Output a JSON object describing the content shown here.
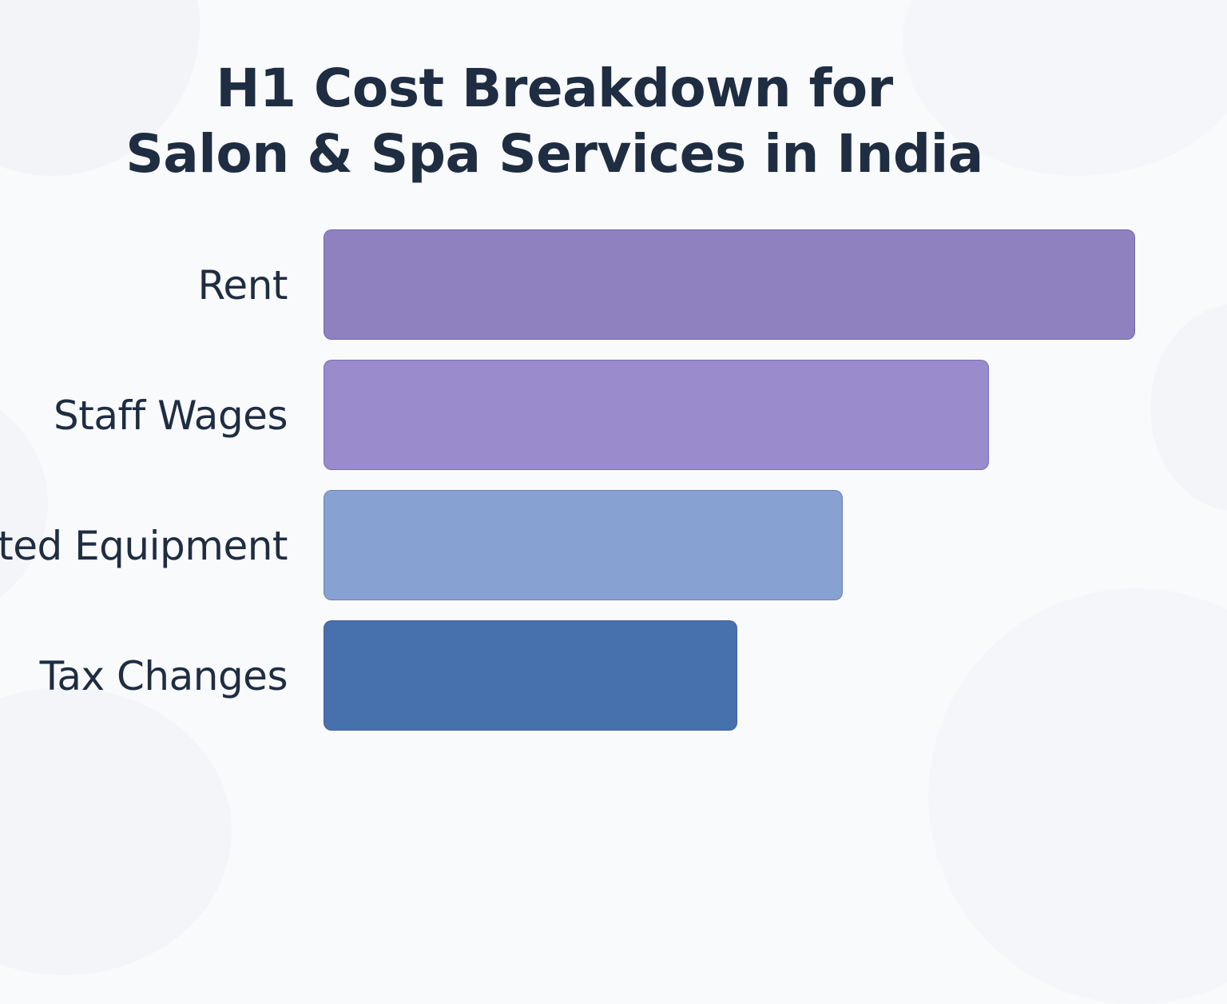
{
  "title": {
    "line1": "H1 Cost Breakdown for",
    "line2": "Salon & Spa Services in India"
  },
  "bars": [
    {
      "label": "Rent",
      "color": "#8f80c0"
    },
    {
      "label": "Staff Wages",
      "color": "#998bcc"
    },
    {
      "label": "Imported Equipment",
      "color": "#87a1d2"
    },
    {
      "label": "Tax Changes",
      "color": "#4671ac"
    }
  ],
  "chart_data": {
    "type": "bar",
    "orientation": "horizontal",
    "title": "H1 Cost Breakdown for Salon & Spa Services in India",
    "categories": [
      "Rent",
      "Staff Wages",
      "Imported Equipment",
      "Tax Changes"
    ],
    "values": [
      100,
      82,
      64,
      51
    ],
    "value_note": "relative bar lengths (Rent = 100); no axis or numeric labels shown",
    "colors": [
      "#8f80c0",
      "#998bcc",
      "#87a1d2",
      "#4671ac"
    ],
    "xlabel": "",
    "ylabel": "",
    "grid": false,
    "legend": null
  }
}
